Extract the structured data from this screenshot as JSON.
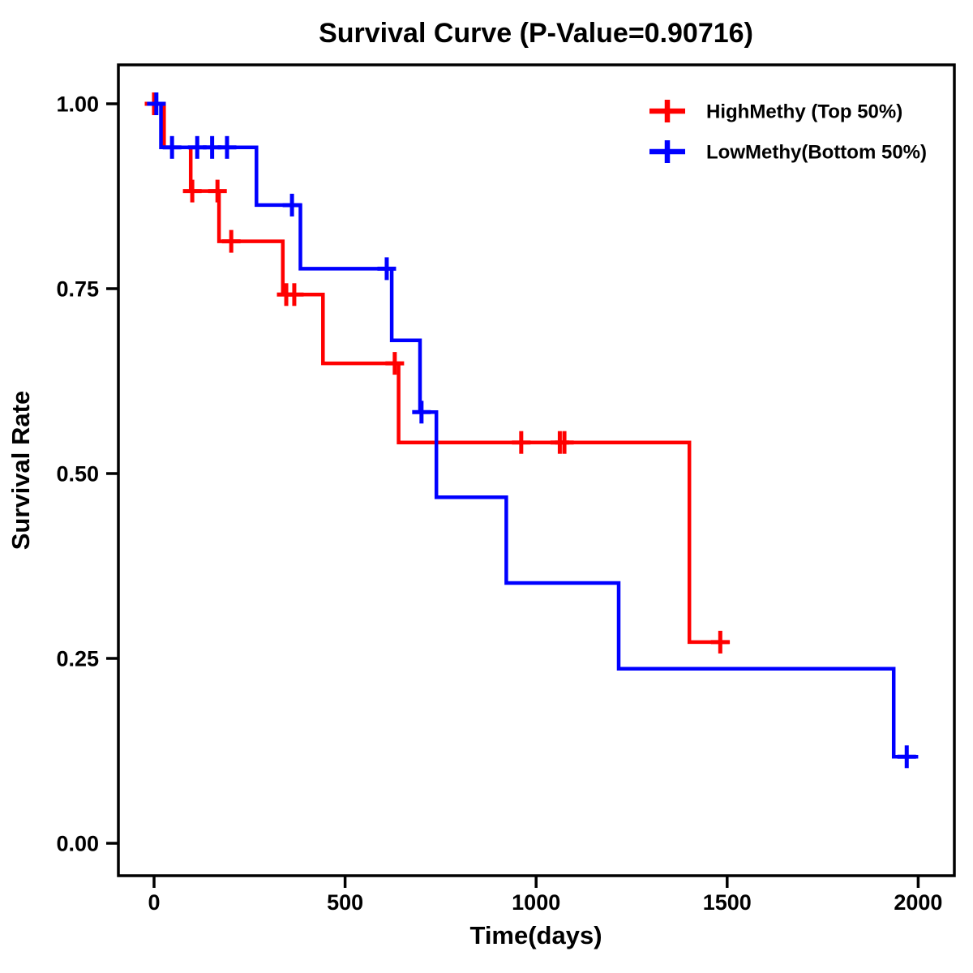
{
  "chart_data": {
    "type": "line",
    "subtype": "kaplan-meier-step",
    "title": "Survival Curve (P-Value=0.90716)",
    "p_value": "0.90716",
    "xlabel": "Time(days)",
    "ylabel": "Survival Rate",
    "xlim": [
      -95,
      2095
    ],
    "ylim": [
      -0.05,
      1.05
    ],
    "grid": false,
    "legend_position": "top-right",
    "legend_frame": false,
    "xticks": [
      {
        "v": 0,
        "label": "0"
      },
      {
        "v": 500,
        "label": "500"
      },
      {
        "v": 1000,
        "label": "1000"
      },
      {
        "v": 1500,
        "label": "1500"
      },
      {
        "v": 2000,
        "label": "2000"
      }
    ],
    "yticks": [
      {
        "v": 0.0,
        "label": "0.00"
      },
      {
        "v": 0.25,
        "label": "0.25"
      },
      {
        "v": 0.5,
        "label": "0.50"
      },
      {
        "v": 0.75,
        "label": "0.75"
      },
      {
        "v": 1.0,
        "label": "1.00"
      }
    ],
    "series": [
      {
        "name": "HighMethy (Top 50%)",
        "color": "#ff0000",
        "start": [
          0,
          1.0
        ],
        "end_time": 1507,
        "steps": [
          [
            26,
            0.941
          ],
          [
            96,
            0.882
          ],
          [
            170,
            0.814
          ],
          [
            337,
            0.742
          ],
          [
            442,
            0.649
          ],
          [
            640,
            0.542
          ],
          [
            1401,
            0.272
          ]
        ],
        "censors": [
          [
            0,
            1.0
          ],
          [
            100,
            0.882
          ],
          [
            166,
            0.882
          ],
          [
            202,
            0.814
          ],
          [
            346,
            0.742
          ],
          [
            367,
            0.742
          ],
          [
            630,
            0.649
          ],
          [
            961,
            0.542
          ],
          [
            1062,
            0.542
          ],
          [
            1074,
            0.542
          ],
          [
            1482,
            0.272
          ]
        ]
      },
      {
        "name": "LowMethy(Bottom 50%)",
        "color": "#0000ff",
        "start": [
          0,
          1.0
        ],
        "end_time": 2000,
        "steps": [
          [
            18,
            0.941
          ],
          [
            268,
            0.863
          ],
          [
            383,
            0.777
          ],
          [
            622,
            0.68
          ],
          [
            696,
            0.583
          ],
          [
            739,
            0.468
          ],
          [
            922,
            0.352
          ],
          [
            1216,
            0.236
          ],
          [
            1936,
            0.117
          ]
        ],
        "censors": [
          [
            6,
            1.0
          ],
          [
            47,
            0.941
          ],
          [
            113,
            0.941
          ],
          [
            152,
            0.941
          ],
          [
            191,
            0.941
          ],
          [
            361,
            0.863
          ],
          [
            609,
            0.777
          ],
          [
            700,
            0.583
          ],
          [
            1970,
            0.117
          ]
        ]
      }
    ]
  }
}
